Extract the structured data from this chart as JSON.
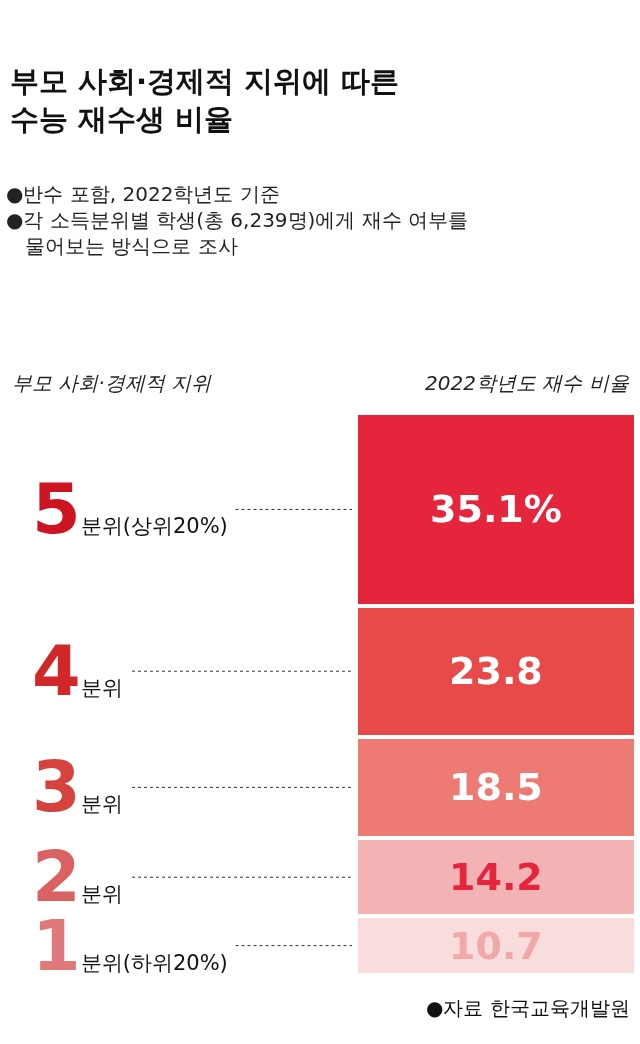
{
  "chart_data": {
    "type": "bar",
    "stacked": true,
    "title": "부모 사회·경제적 지위에 따른\n수능 재수생 비율",
    "subtitle": "●반수 포함, 2022학년도 기준\n●각 소득분위별 학생(총 6,239명)에게 재수 여부를\n물어보는 방식으로 조사",
    "legend_title": "부모 사회·경제적 지위",
    "xlabel": "2022학년도 재수 비율",
    "categories": [
      null
    ],
    "tick_labels": false,
    "legend": false,
    "series": [
      {
        "name": "1분위(하위20%)",
        "color": "#f9dcdc",
        "values": [
          10.7
        ],
        "value_labels": [
          "10.7"
        ]
      },
      {
        "name": "2분위",
        "color": "#f3b3b4",
        "values": [
          14.2
        ],
        "value_labels": [
          "14.2"
        ]
      },
      {
        "name": "3분위",
        "color": "#ee7b73",
        "values": [
          18.5
        ],
        "value_labels": [
          "18.5"
        ]
      },
      {
        "name": "4분위",
        "color": "#e84a4a",
        "values": [
          23.8
        ],
        "value_labels": [
          "23.8"
        ]
      },
      {
        "name": "5분위(상위20%)",
        "color": "#e4253b",
        "values": [
          35.1
        ],
        "value_labels": [
          "35.1%"
        ]
      }
    ],
    "annotations": [
      "●자료 한국교육개발원"
    ]
  }
}
